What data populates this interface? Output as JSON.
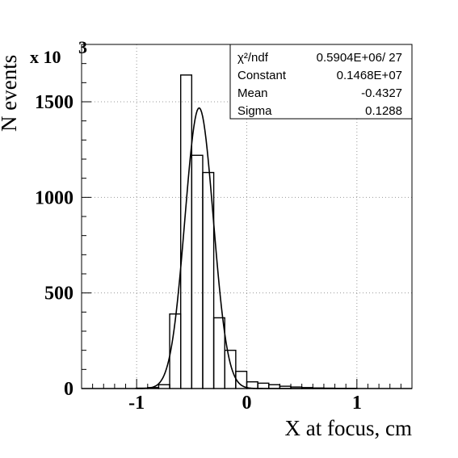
{
  "chart_data": {
    "type": "histogram",
    "title": "",
    "xlabel": "X at focus, cm",
    "ylabel": "N events",
    "y_multiplier": "x 10",
    "y_multiplier_exp": "3",
    "xlim": [
      -1.5,
      1.5
    ],
    "ylim": [
      0,
      1800
    ],
    "x_ticks": [
      {
        "value": -1,
        "label": "-1"
      },
      {
        "value": 0,
        "label": "0"
      },
      {
        "value": 1,
        "label": "1"
      }
    ],
    "y_ticks": [
      {
        "value": 0,
        "label": "0"
      },
      {
        "value": 500,
        "label": "500"
      },
      {
        "value": 1000,
        "label": "1000"
      },
      {
        "value": 1500,
        "label": "1500"
      }
    ],
    "grid": true,
    "bin_edges": [
      -1.5,
      -1.4,
      -1.3,
      -1.2,
      -1.1,
      -1.0,
      -0.9,
      -0.8,
      -0.7,
      -0.6,
      -0.5,
      -0.4,
      -0.3,
      -0.2,
      -0.1,
      0.0,
      0.1,
      0.2,
      0.3,
      0.4,
      0.5,
      0.6,
      0.7,
      0.8,
      0.9,
      1.0,
      1.1,
      1.2,
      1.3,
      1.4,
      1.5
    ],
    "bin_counts": [
      0,
      0,
      0,
      0,
      0,
      2,
      5,
      20,
      390,
      1640,
      1220,
      1130,
      370,
      200,
      90,
      35,
      28,
      20,
      12,
      8,
      5,
      3,
      2,
      1,
      1,
      0,
      0,
      0,
      0,
      0
    ],
    "fit": {
      "function": "gaussian",
      "constant": 1468,
      "mean": -0.4327,
      "sigma": 0.1288
    },
    "stats_box": [
      {
        "name": "χ²/ndf",
        "value": "0.5904E+06/   27"
      },
      {
        "name": "Constant",
        "value": "0.1468E+07"
      },
      {
        "name": "Mean",
        "value": "-0.4327"
      },
      {
        "name": "Sigma",
        "value": "0.1288"
      }
    ]
  }
}
